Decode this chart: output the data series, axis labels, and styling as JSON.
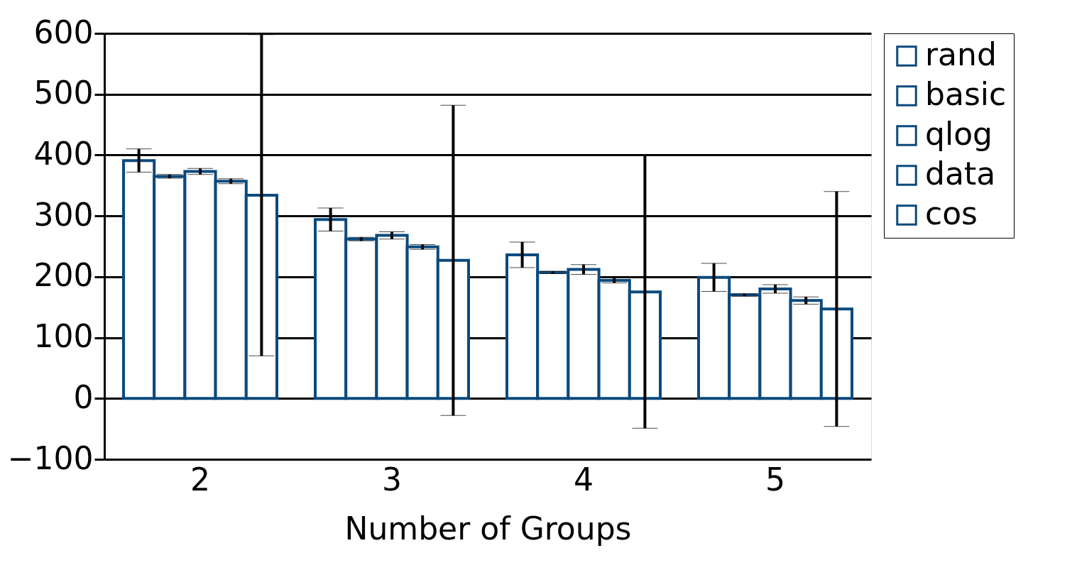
{
  "chart_data": {
    "type": "bar",
    "xlabel": "Number of Groups",
    "categories": [
      "2",
      "3",
      "4",
      "5"
    ],
    "series": [
      {
        "name": "rand",
        "color": "#0b4a7d",
        "values": [
          391,
          294,
          236,
          199
        ],
        "errors": [
          19,
          19,
          21,
          23
        ]
      },
      {
        "name": "basic",
        "color": "#0b4a7d",
        "values": [
          365,
          262,
          207,
          170
        ],
        "errors": [
          3,
          3,
          2,
          2
        ]
      },
      {
        "name": "qlog",
        "color": "#0b4a7d",
        "values": [
          373,
          268,
          212,
          180
        ],
        "errors": [
          5,
          6,
          8,
          7
        ]
      },
      {
        "name": "data",
        "color": "#0b4a7d",
        "values": [
          357,
          249,
          194,
          161
        ],
        "errors": [
          4,
          4,
          4,
          6
        ]
      },
      {
        "name": "cos",
        "color": "#0b4a7d",
        "values": [
          334,
          227,
          175,
          147
        ],
        "errors": [
          264,
          255,
          224,
          193
        ]
      }
    ],
    "ylim": [
      -100,
      600
    ],
    "yticks": [
      -100,
      0,
      100,
      200,
      300,
      400,
      500,
      600
    ],
    "grid": "y",
    "legend": "right"
  }
}
